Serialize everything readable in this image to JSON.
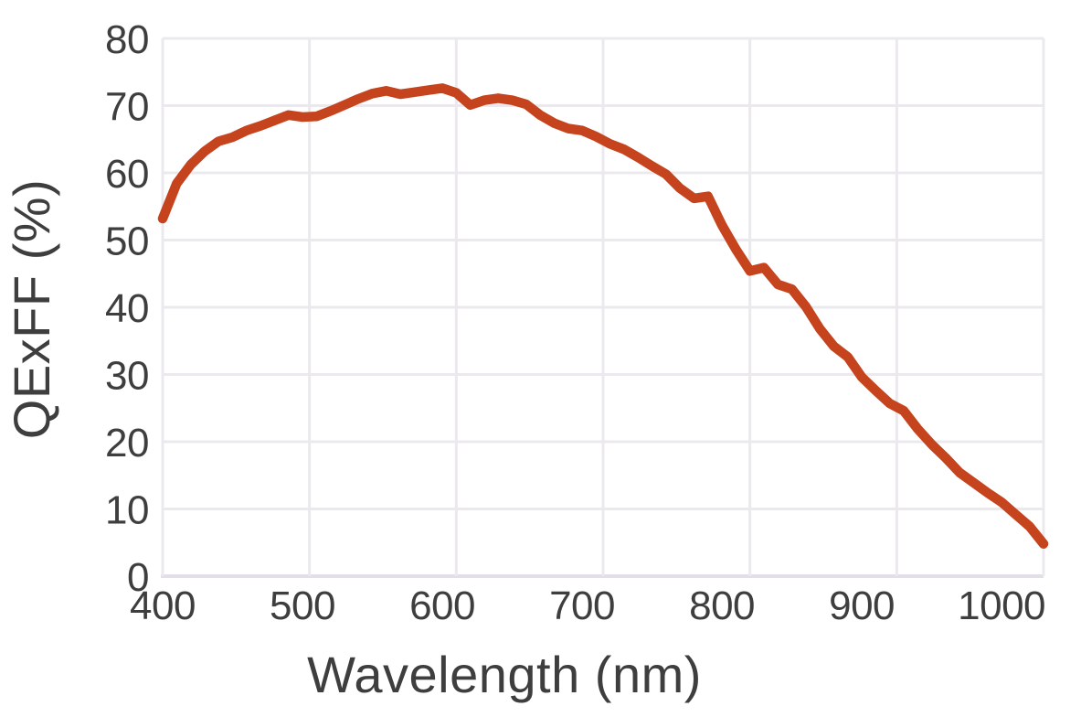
{
  "figure": {
    "background": "#ffffff",
    "text_color": "#3e3e3e",
    "grid_color": "#ebe9ee",
    "axis_line_color": "#e2e0e6",
    "line_color": "#c5431d"
  },
  "chart_data": {
    "type": "line",
    "title": "",
    "xlabel": "Wavelength (nm)",
    "ylabel": "QExFF (%)",
    "xlim": [
      400,
      1030
    ],
    "ylim": [
      0,
      80
    ],
    "x_ticks": [
      400,
      500,
      600,
      700,
      800,
      900,
      1000
    ],
    "y_ticks": [
      0,
      10,
      20,
      30,
      40,
      50,
      60,
      70,
      80
    ],
    "grid": true,
    "vertical_grid_divisions": 6,
    "legend": "none",
    "series": [
      {
        "name": "QExFF",
        "color": "#c5431d",
        "stroke_width": 10.5,
        "x": [
          400,
          410,
          420,
          430,
          440,
          450,
          460,
          470,
          480,
          490,
          500,
          510,
          520,
          530,
          540,
          550,
          560,
          570,
          580,
          590,
          600,
          610,
          620,
          630,
          640,
          650,
          660,
          670,
          680,
          690,
          700,
          710,
          720,
          730,
          740,
          750,
          760,
          770,
          780,
          790,
          800,
          810,
          820,
          830,
          840,
          850,
          860,
          870,
          880,
          890,
          900,
          910,
          920,
          930,
          940,
          950,
          960,
          970,
          980,
          990,
          1000,
          1010,
          1020,
          1030
        ],
        "values": [
          53.2,
          58.4,
          61.2,
          63.2,
          64.7,
          65.3,
          66.3,
          67.0,
          67.8,
          68.6,
          68.3,
          68.4,
          69.2,
          70.1,
          71.0,
          71.8,
          72.2,
          71.7,
          72.0,
          72.3,
          72.6,
          71.9,
          70.1,
          70.8,
          71.1,
          70.8,
          70.2,
          68.6,
          67.4,
          66.6,
          66.3,
          65.4,
          64.3,
          63.5,
          62.3,
          61.0,
          59.8,
          57.7,
          56.2,
          56.5,
          52.2,
          48.6,
          45.4,
          45.9,
          43.4,
          42.7,
          40.1,
          36.8,
          34.2,
          32.6,
          29.6,
          27.6,
          25.7,
          24.6,
          21.9,
          19.6,
          17.6,
          15.4,
          13.9,
          12.4,
          11.0,
          9.2,
          7.4,
          4.8
        ]
      }
    ]
  }
}
